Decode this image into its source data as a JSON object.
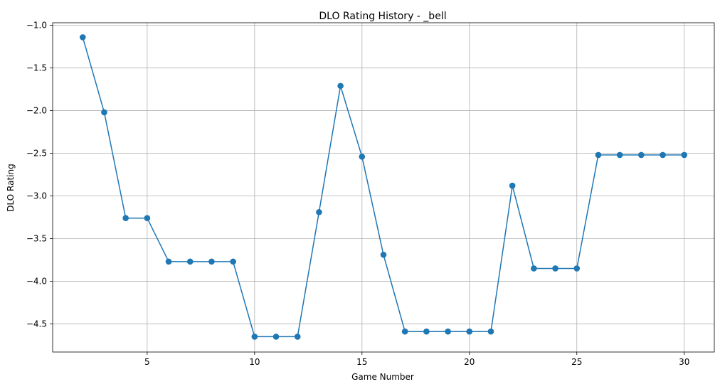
{
  "chart_data": {
    "type": "line",
    "title": "DLO Rating History - _bell",
    "xlabel": "Game Number",
    "ylabel": "DLO Rating",
    "xlim": [
      0.6,
      31.4
    ],
    "ylim": [
      -4.83,
      -0.97
    ],
    "xticks": [
      5,
      10,
      15,
      20,
      25,
      30
    ],
    "xtick_labels": [
      "5",
      "10",
      "15",
      "20",
      "25",
      "30"
    ],
    "yticks": [
      -1.0,
      -1.5,
      -2.0,
      -2.5,
      -3.0,
      -3.5,
      -4.0,
      -4.5
    ],
    "ytick_labels": [
      "−1.0",
      "−1.5",
      "−2.0",
      "−2.5",
      "−3.0",
      "−3.5",
      "−4.0",
      "−4.5"
    ],
    "grid": true,
    "legend": "none",
    "series": [
      {
        "color": "#1f77b4",
        "marker": "circle",
        "x": [
          2,
          3,
          4,
          5,
          6,
          7,
          8,
          9,
          10,
          11,
          12,
          13,
          14,
          15,
          16,
          17,
          18,
          19,
          20,
          21,
          22,
          23,
          24,
          25,
          26,
          27,
          28,
          29,
          30
        ],
        "y": [
          -1.14,
          -2.02,
          -3.26,
          -3.26,
          -3.77,
          -3.77,
          -3.77,
          -3.77,
          -4.65,
          -4.65,
          -4.65,
          -3.19,
          -1.71,
          -2.54,
          -3.69,
          -4.59,
          -4.59,
          -4.59,
          -4.59,
          -4.59,
          -2.88,
          -3.85,
          -3.85,
          -3.85,
          -2.52,
          -2.52,
          -2.52,
          -2.52,
          -2.52
        ]
      }
    ]
  }
}
